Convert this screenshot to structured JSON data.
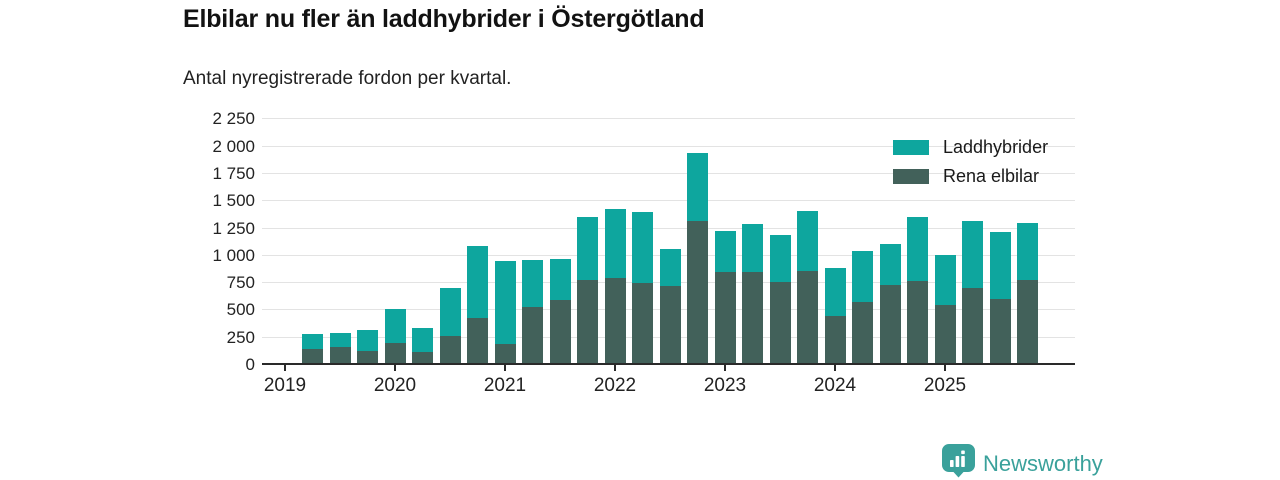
{
  "header": {
    "title": "Elbilar nu fler än laddhybrider i Östergötland",
    "subtitle": "Antal nyregistrerade fordon per kvartal."
  },
  "chart_data": {
    "type": "bar",
    "stacked": true,
    "title": "Elbilar nu fler än laddhybrider i Östergötland",
    "subtitle": "Antal nyregistrerade fordon per kvartal.",
    "xlabel": "",
    "ylabel": "",
    "ylim": [
      0,
      2250
    ],
    "grid": true,
    "legend_position": "top-right",
    "categories": [
      "Q2 2019",
      "Q3 2019",
      "Q4 2019",
      "Q1 2020",
      "Q2 2020",
      "Q3 2020",
      "Q4 2020",
      "Q1 2021",
      "Q2 2021",
      "Q3 2021",
      "Q4 2021",
      "Q1 2022",
      "Q2 2022",
      "Q3 2022",
      "Q4 2022",
      "Q1 2023",
      "Q2 2023",
      "Q3 2023",
      "Q4 2023",
      "Q1 2024",
      "Q2 2024",
      "Q3 2024",
      "Q4 2024",
      "Q1 2025",
      "Q2 2025",
      "Q3 2025",
      "Q4 2025"
    ],
    "series": [
      {
        "name": "Rena elbilar",
        "color": "#42615a",
        "values": [
          140,
          155,
          115,
          195,
          110,
          260,
          420,
          185,
          525,
          585,
          770,
          785,
          740,
          710,
          1310,
          840,
          845,
          750,
          855,
          435,
          565,
          720,
          760,
          540,
          700,
          595,
          765
        ]
      },
      {
        "name": "Laddhybrider",
        "color": "#0ea69e",
        "values": [
          135,
          130,
          195,
          310,
          220,
          440,
          665,
          755,
          430,
          380,
          575,
          630,
          650,
          345,
          625,
          375,
          435,
          430,
          545,
          440,
          470,
          380,
          590,
          455,
          610,
          610,
          530
        ]
      }
    ],
    "y_ticks": [
      {
        "value": 0,
        "label": "0"
      },
      {
        "value": 250,
        "label": "250"
      },
      {
        "value": 500,
        "label": "500"
      },
      {
        "value": 750,
        "label": "750"
      },
      {
        "value": 1000,
        "label": "1 000"
      },
      {
        "value": 1250,
        "label": "1 250"
      },
      {
        "value": 1500,
        "label": "1 500"
      },
      {
        "value": 1750,
        "label": "1 750"
      },
      {
        "value": 2000,
        "label": "2 000"
      },
      {
        "value": 2250,
        "label": "2 250"
      }
    ],
    "x_ticks": [
      {
        "label": "2019",
        "bar_index": -1
      },
      {
        "label": "2020",
        "bar_index": 3
      },
      {
        "label": "2021",
        "bar_index": 7
      },
      {
        "label": "2022",
        "bar_index": 11
      },
      {
        "label": "2023",
        "bar_index": 15
      },
      {
        "label": "2024",
        "bar_index": 19
      },
      {
        "label": "2025",
        "bar_index": 23
      }
    ]
  },
  "footer": {
    "brand": "Newsworthy",
    "brand_color": "#3aa19b"
  }
}
